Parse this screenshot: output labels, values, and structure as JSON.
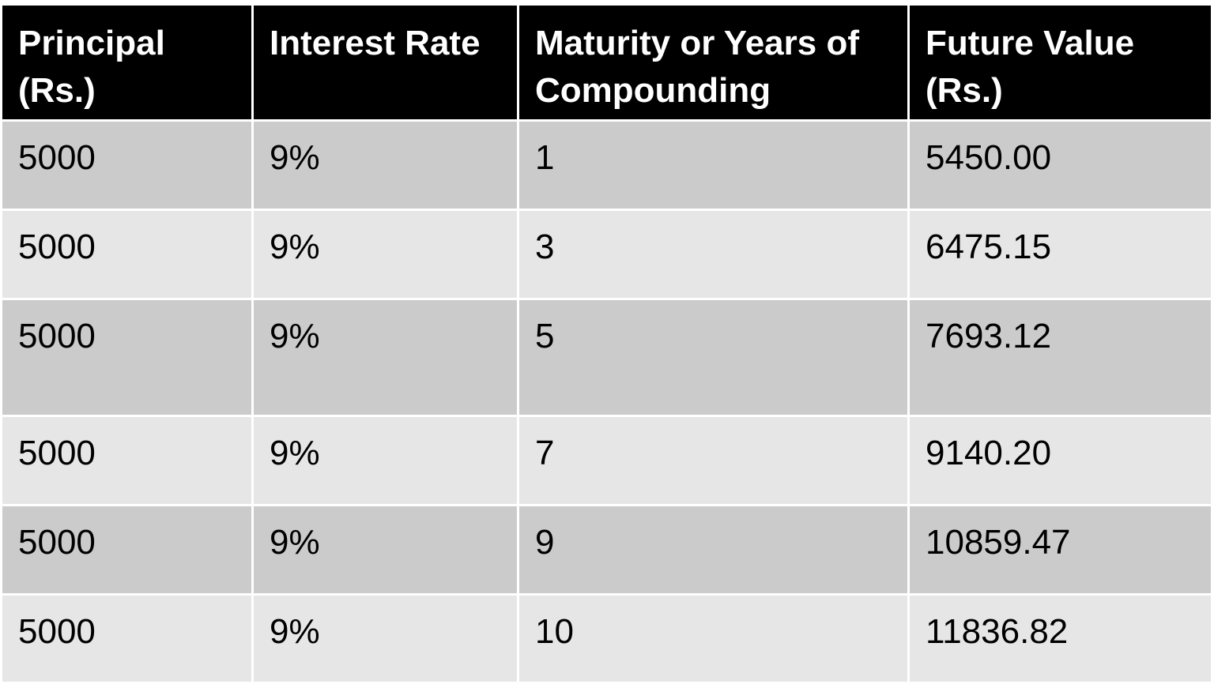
{
  "table": {
    "headers": [
      {
        "line1": "Principal",
        "line2": "(Rs.)"
      },
      {
        "line1": "Interest Rate",
        "line2": ""
      },
      {
        "line1": "Maturity or Years of",
        "line2": "Compounding"
      },
      {
        "line1": "Future Value",
        "line2": "(Rs.)"
      }
    ],
    "rows": [
      {
        "principal": "5000",
        "rate": "9%",
        "years": "1",
        "future_value": "5450.00"
      },
      {
        "principal": "5000",
        "rate": "9%",
        "years": "3",
        "future_value": "6475.15"
      },
      {
        "principal": "5000",
        "rate": "9%",
        "years": "5",
        "future_value": "7693.12"
      },
      {
        "principal": "5000",
        "rate": "9%",
        "years": "7",
        "future_value": "9140.20"
      },
      {
        "principal": "5000",
        "rate": "9%",
        "years": "9",
        "future_value": "10859.47"
      },
      {
        "principal": "5000",
        "rate": "9%",
        "years": "10",
        "future_value": "11836.82"
      }
    ],
    "colors": {
      "header_bg": "#000000",
      "header_text": "#ffffff",
      "row_dark": "#cbcbcb",
      "row_light": "#e6e6e6",
      "border": "#ffffff"
    }
  }
}
